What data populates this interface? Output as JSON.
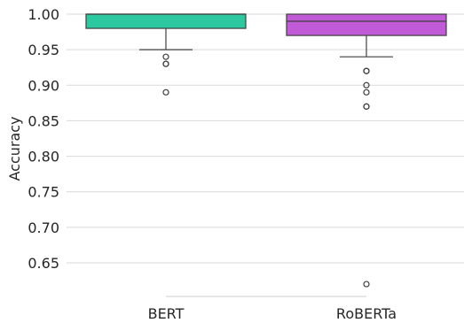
{
  "chart_data": {
    "type": "box",
    "title": "",
    "xlabel": "",
    "ylabel": "Accuracy",
    "ylim": [
      0.61,
      1.0
    ],
    "yticks": [
      0.65,
      0.7,
      0.75,
      0.8,
      0.85,
      0.9,
      0.95,
      1.0
    ],
    "ytick_labels": [
      "0.65",
      "0.70",
      "0.75",
      "0.80",
      "0.85",
      "0.90",
      "0.95",
      "1.00"
    ],
    "grid": "horizontal",
    "categories": [
      "BERT",
      "RoBERTa"
    ],
    "boxes": [
      {
        "category": "BERT",
        "color": "#2cc9a0",
        "whisker_low": 0.95,
        "q1": 0.98,
        "median": 1.0,
        "q3": 1.0,
        "whisker_high": 1.0,
        "fliers": [
          0.94,
          0.93,
          0.93,
          0.89
        ]
      },
      {
        "category": "RoBERTa",
        "color": "#c05ad6",
        "whisker_low": 0.94,
        "q1": 0.97,
        "median": 0.99,
        "q3": 1.0,
        "whisker_high": 1.0,
        "fliers": [
          0.92,
          0.92,
          0.9,
          0.89,
          0.87,
          0.87,
          0.62
        ]
      }
    ]
  }
}
